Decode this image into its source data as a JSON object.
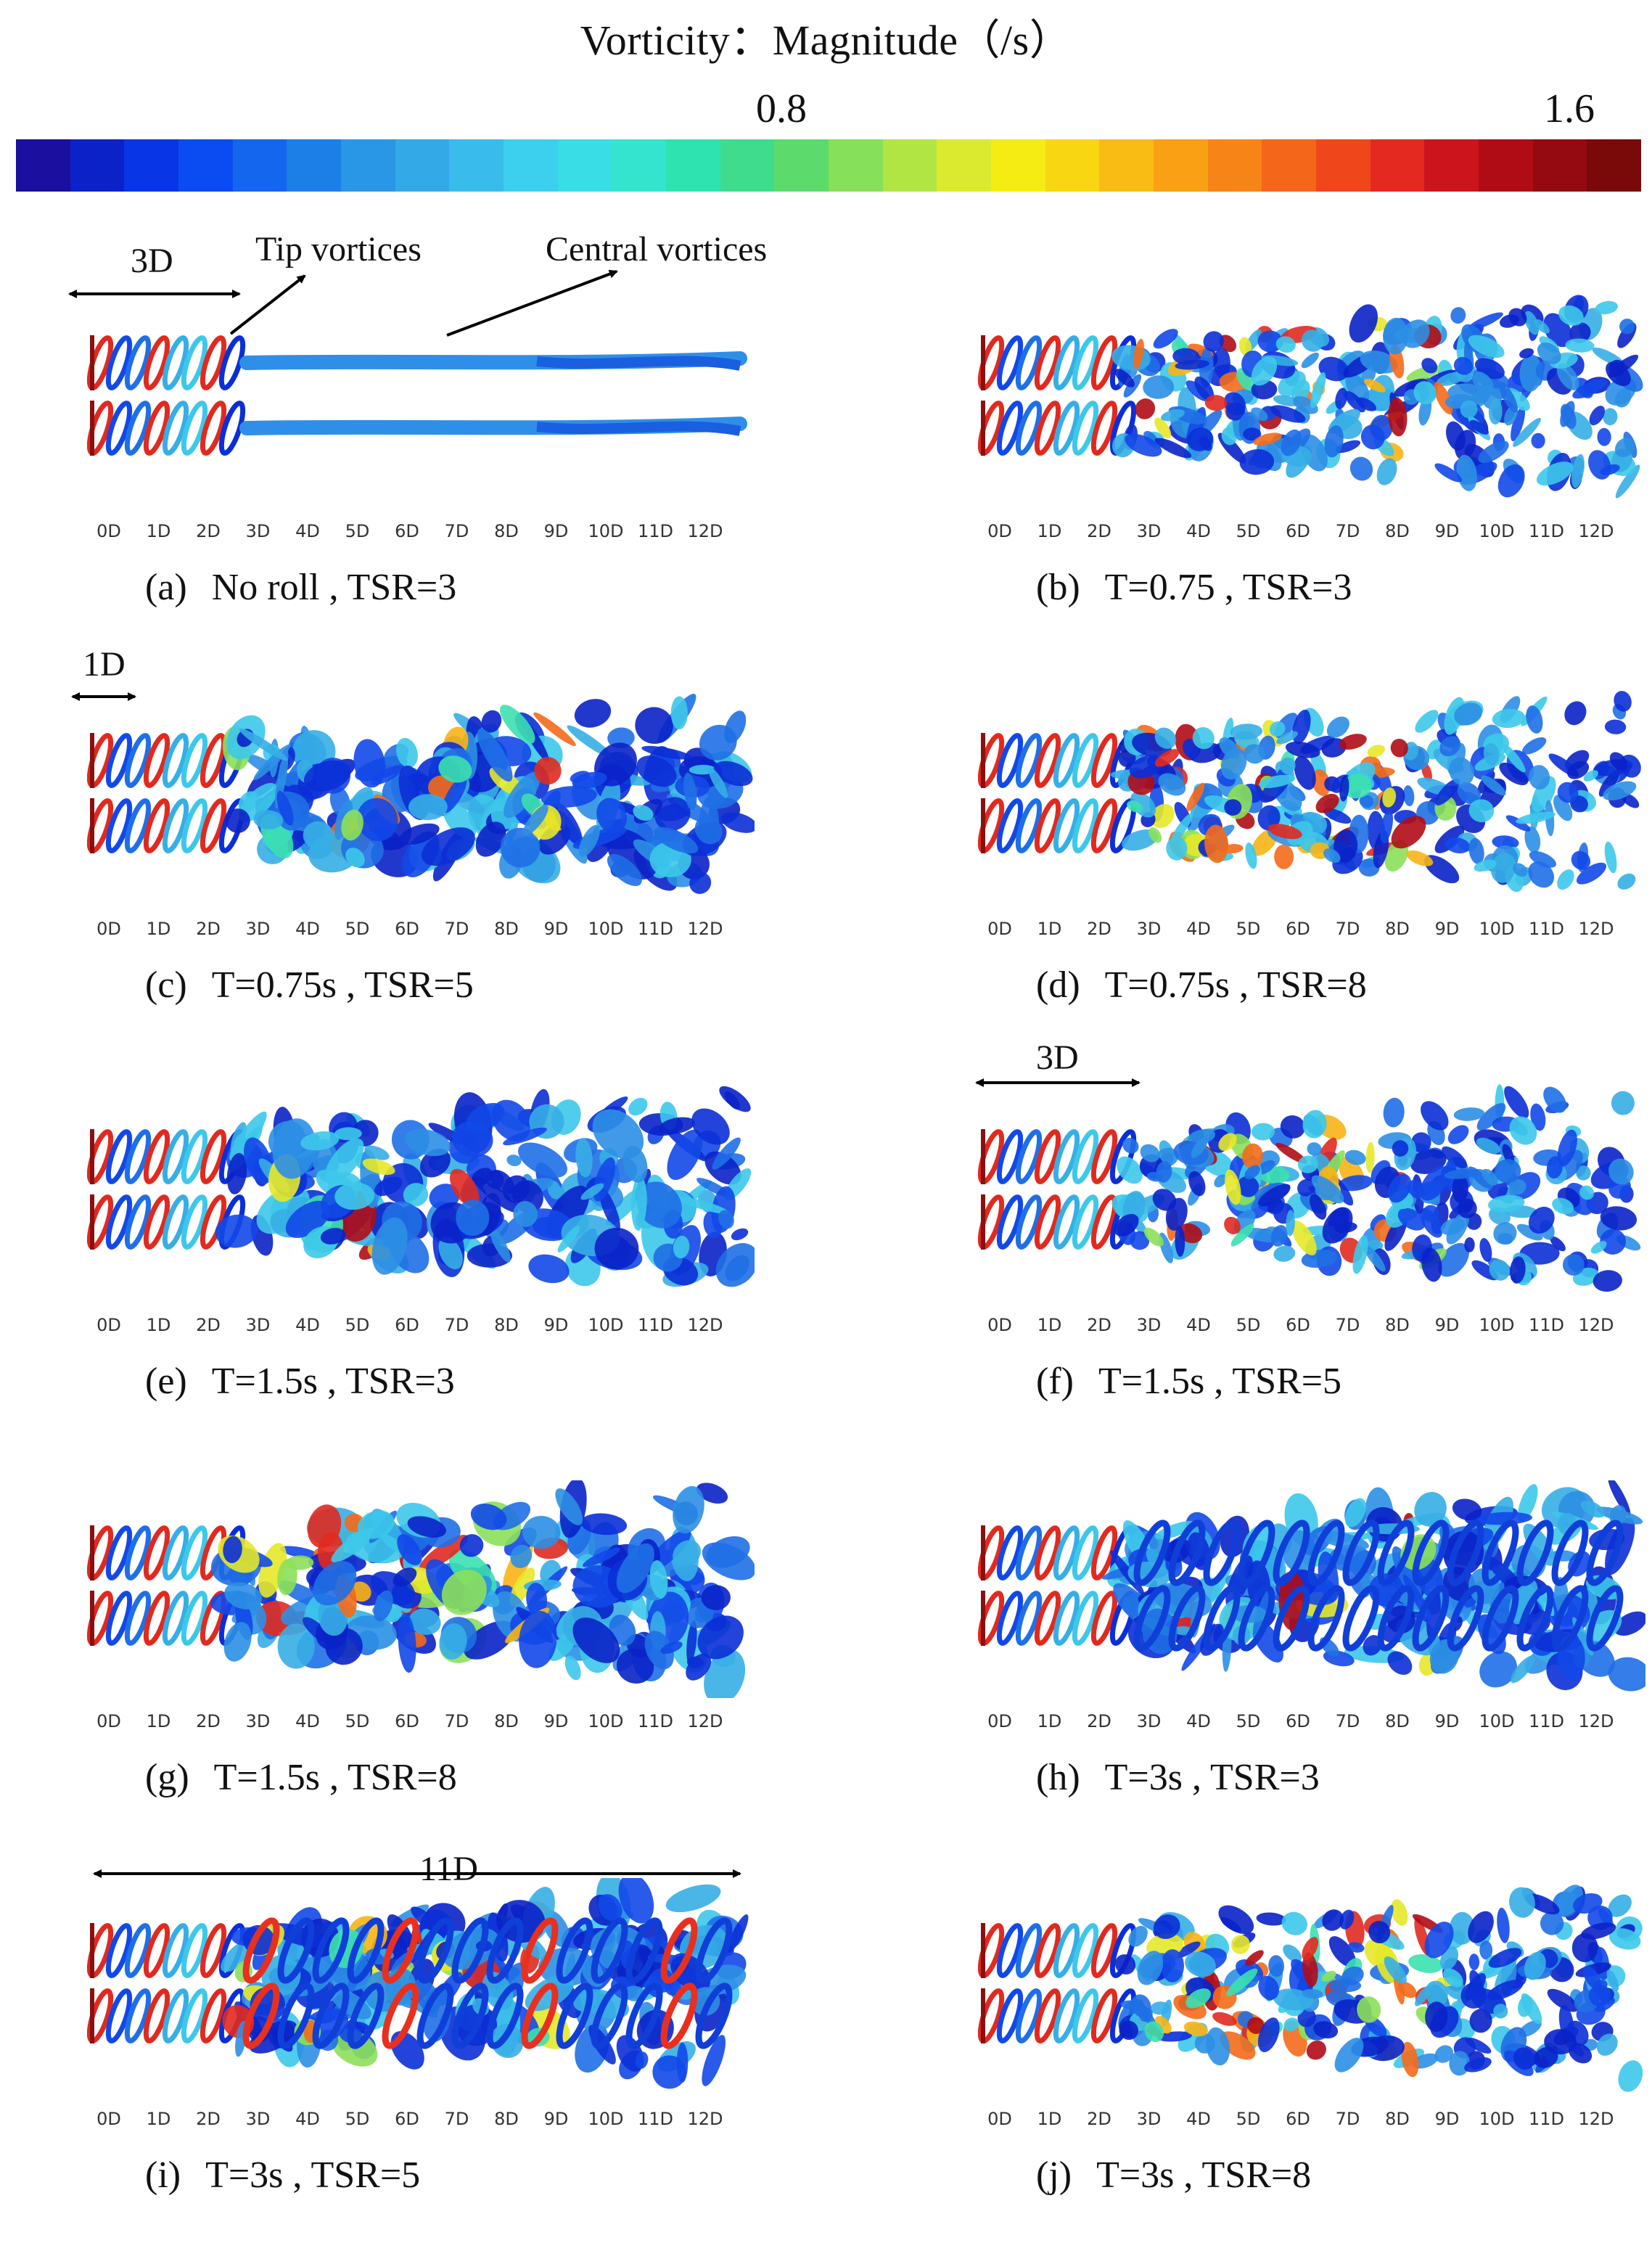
{
  "title": "Vorticity：Magnitude（/s）",
  "colorbar": {
    "mid_label": "0.8",
    "max_label": "1.6",
    "colors": [
      "#1a0f9e",
      "#0a22c8",
      "#0835e6",
      "#0a4cf2",
      "#1466ee",
      "#1c7fe8",
      "#2a96e6",
      "#33a9e8",
      "#39bcec",
      "#3ccfee",
      "#39dde6",
      "#34e4cf",
      "#2ee3b0",
      "#3fdc8e",
      "#5cdb6c",
      "#86e05a",
      "#b1e544",
      "#dbea2f",
      "#f5ec14",
      "#f8d612",
      "#f9bc14",
      "#f9a014",
      "#f78416",
      "#f4661a",
      "#ef461c",
      "#e42a20",
      "#cc141c",
      "#b00c16",
      "#940a10",
      "#7a0a0a"
    ]
  },
  "axis_ticks": [
    "0D",
    "1D",
    "2D",
    "3D",
    "4D",
    "5D",
    "6D",
    "7D",
    "8D",
    "9D",
    "10D",
    "11D",
    "12D"
  ],
  "panels": [
    {
      "id": "a",
      "label": "(a)",
      "text": "No roll , TSR=3",
      "style": "smooth"
    },
    {
      "id": "b",
      "label": "(b)",
      "text": "T=0.75 , TSR=3",
      "style": "dense"
    },
    {
      "id": "c",
      "label": "(c)",
      "text": "T=0.75s , TSR=5",
      "style": "turb-blue"
    },
    {
      "id": "d",
      "label": "(d)",
      "text": "T=0.75s , TSR=8",
      "style": "dense-warm"
    },
    {
      "id": "e",
      "label": "(e)",
      "text": "T=1.5s , TSR=3",
      "style": "turb-blue"
    },
    {
      "id": "f",
      "label": "(f)",
      "text": "T=1.5s , TSR=5",
      "style": "dense"
    },
    {
      "id": "g",
      "label": "(g)",
      "text": "T=1.5s , TSR=8",
      "style": "turb-warm"
    },
    {
      "id": "h",
      "label": "(h)",
      "text": "T=3s , TSR=3",
      "style": "helix-blue"
    },
    {
      "id": "i",
      "label": "(i)",
      "text": "T=3s , TSR=5",
      "style": "helix-mixed"
    },
    {
      "id": "j",
      "label": "(j)",
      "text": "T=3s , TSR=8",
      "style": "dense-warm"
    }
  ],
  "annotations": {
    "a_span": "3D",
    "tip_vortices": "Tip vortices",
    "central_vortices": "Central vortices",
    "c_span": "1D",
    "f_span": "3D",
    "i_span": "11D"
  }
}
